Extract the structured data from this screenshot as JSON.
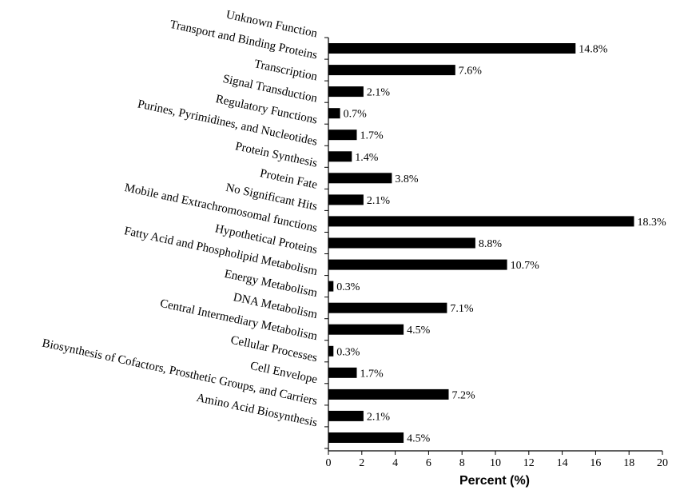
{
  "chart_data": {
    "type": "bar",
    "orientation": "horizontal",
    "categories": [
      "Unknown Function",
      "Transport and Binding Proteins",
      "Transcription",
      "Signal Transduction",
      "Regulatory Functions",
      "Purines, Pyrimidines, and Nucleotides",
      "Protein Synthesis",
      "Protein Fate",
      "No Significant Hits",
      "Mobile and Extrachromosomal functions",
      "Hypothetical Proteins",
      "Fatty Acid and Phospholipid Metabolism",
      "Energy Metabolism",
      "DNA Metabolism",
      "Central Intermediary Metabolism",
      "Cellular Processes",
      "Cell Envelope",
      "Biosynthesis of Cofactors, Prosthetic Groups, and Carriers",
      "Amino Acid Biosynthesis"
    ],
    "values": [
      14.8,
      7.6,
      2.1,
      0.7,
      1.7,
      1.4,
      3.8,
      2.1,
      18.3,
      8.8,
      10.7,
      0.3,
      7.1,
      4.5,
      0.3,
      1.7,
      7.2,
      2.1,
      4.5
    ],
    "data_labels": [
      "14.8%",
      "7.6%",
      "2.1%",
      "0.7%",
      "1.7%",
      "1.4%",
      "3.8%",
      "2.1%",
      "18.3%",
      "8.8%",
      "10.7%",
      "0.3%",
      "7.1%",
      "4.5%",
      "0.3%",
      "1.7%",
      "7.2%",
      "2.1%",
      "4.5%"
    ],
    "xlabel": "Percent (%)",
    "ylabel": "",
    "title": "",
    "xlim": [
      0,
      20
    ],
    "xticks": [
      "0",
      "2",
      "4",
      "6",
      "8",
      "10",
      "12",
      "14",
      "16",
      "18",
      "20"
    ],
    "grid": false,
    "legend": false,
    "bar_color": "#000000"
  }
}
